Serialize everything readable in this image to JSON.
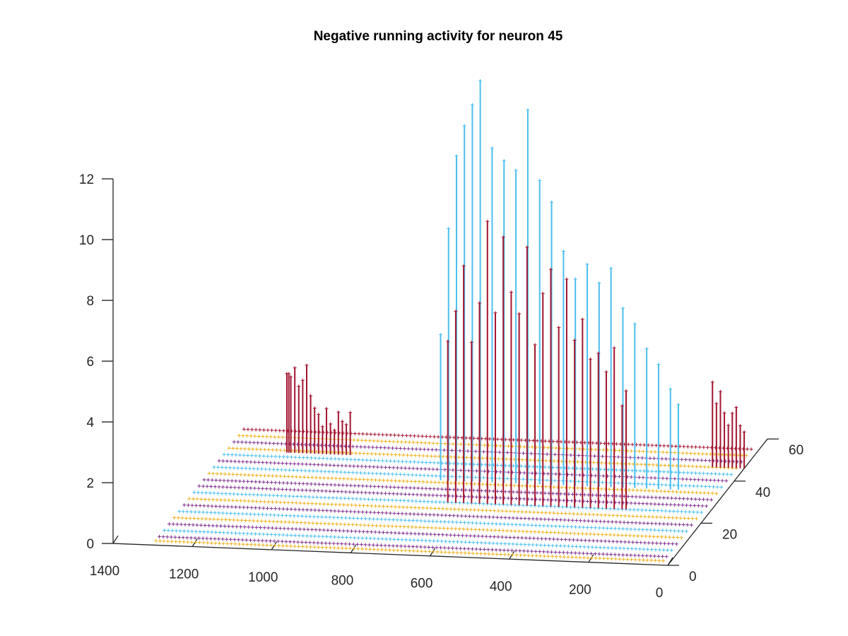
{
  "chart_data": {
    "type": "stem3",
    "title": "Negative running activity for neuron 45",
    "xlabel": "",
    "ylabel": "",
    "zlabel": "",
    "xlim": [
      0,
      1400
    ],
    "ylim": [
      0,
      60
    ],
    "zlim": [
      0,
      12
    ],
    "x_ticks": [
      0,
      200,
      400,
      600,
      800,
      1000,
      1200,
      1400
    ],
    "y_ticks": [
      0,
      20,
      40,
      60
    ],
    "z_ticks": [
      0,
      2,
      4,
      6,
      8,
      10,
      12
    ],
    "grid": false,
    "baseline_rows": [
      {
        "y": 2,
        "x_min": 20,
        "x_max": 1300,
        "color": "#EDB120"
      },
      {
        "y": 4,
        "x_min": 20,
        "x_max": 1300,
        "color": "#7E2F8E"
      },
      {
        "y": 7,
        "x_min": 20,
        "x_max": 1300,
        "color": "#4DBEEE"
      },
      {
        "y": 10,
        "x_min": 20,
        "x_max": 1300,
        "color": "#7E2F8E"
      },
      {
        "y": 13,
        "x_min": 20,
        "x_max": 1300,
        "color": "#EDB120"
      },
      {
        "y": 16,
        "x_min": 20,
        "x_max": 1300,
        "color": "#4DBEEE"
      },
      {
        "y": 19,
        "x_min": 20,
        "x_max": 1300,
        "color": "#7E2F8E"
      },
      {
        "y": 22,
        "x_min": 20,
        "x_max": 1300,
        "color": "#EDB120"
      },
      {
        "y": 25,
        "x_min": 20,
        "x_max": 1300,
        "color": "#4DBEEE"
      },
      {
        "y": 28,
        "x_min": 20,
        "x_max": 1300,
        "color": "#7E2F8E"
      },
      {
        "y": 31,
        "x_min": 20,
        "x_max": 1300,
        "color": "#7E2F8E"
      },
      {
        "y": 34,
        "x_min": 20,
        "x_max": 1300,
        "color": "#EDB120"
      },
      {
        "y": 37,
        "x_min": 20,
        "x_max": 1300,
        "color": "#4DBEEE"
      },
      {
        "y": 40,
        "x_min": 20,
        "x_max": 1300,
        "color": "#7E2F8E"
      },
      {
        "y": 43,
        "x_min": 20,
        "x_max": 1300,
        "color": "#4DBEEE"
      },
      {
        "y": 46,
        "x_min": 20,
        "x_max": 1300,
        "color": "#EDB120"
      },
      {
        "y": 49,
        "x_min": 20,
        "x_max": 1300,
        "color": "#7E2F8E"
      },
      {
        "y": 52,
        "x_min": 20,
        "x_max": 1300,
        "color": "#EDB120"
      },
      {
        "y": 55,
        "x_min": 20,
        "x_max": 1300,
        "color": "#A2142F"
      }
    ],
    "series": [
      {
        "color": "#4DBEEE",
        "stems": [
          {
            "x": 720,
            "y": 35,
            "z": 4.8
          },
          {
            "x": 700,
            "y": 35,
            "z": 8.3
          },
          {
            "x": 680,
            "y": 35,
            "z": 10.7
          },
          {
            "x": 660,
            "y": 35,
            "z": 11.7
          },
          {
            "x": 640,
            "y": 35,
            "z": 12.4
          },
          {
            "x": 620,
            "y": 35,
            "z": 13.2
          },
          {
            "x": 590,
            "y": 35,
            "z": 11.0
          },
          {
            "x": 560,
            "y": 35,
            "z": 10.6
          },
          {
            "x": 530,
            "y": 35,
            "z": 10.3
          },
          {
            "x": 500,
            "y": 35,
            "z": 12.3
          },
          {
            "x": 470,
            "y": 35,
            "z": 10.0
          },
          {
            "x": 440,
            "y": 35,
            "z": 9.3
          },
          {
            "x": 410,
            "y": 35,
            "z": 7.7
          },
          {
            "x": 380,
            "y": 35,
            "z": 6.8
          },
          {
            "x": 350,
            "y": 35,
            "z": 7.3
          },
          {
            "x": 320,
            "y": 35,
            "z": 6.7
          },
          {
            "x": 290,
            "y": 35,
            "z": 7.2
          },
          {
            "x": 260,
            "y": 35,
            "z": 5.9
          },
          {
            "x": 230,
            "y": 35,
            "z": 5.4
          },
          {
            "x": 200,
            "y": 35,
            "z": 4.6
          },
          {
            "x": 170,
            "y": 35,
            "z": 4.1
          },
          {
            "x": 140,
            "y": 35,
            "z": 3.3
          },
          {
            "x": 120,
            "y": 35,
            "z": 2.8
          }
        ]
      },
      {
        "color": "#A2142F",
        "stems": [
          {
            "x": 660,
            "y": 25,
            "z": 5.3
          },
          {
            "x": 640,
            "y": 25,
            "z": 6.3
          },
          {
            "x": 620,
            "y": 25,
            "z": 7.8
          },
          {
            "x": 600,
            "y": 25,
            "z": 5.3
          },
          {
            "x": 580,
            "y": 25,
            "z": 6.6
          },
          {
            "x": 560,
            "y": 25,
            "z": 9.3
          },
          {
            "x": 540,
            "y": 25,
            "z": 6.3
          },
          {
            "x": 520,
            "y": 25,
            "z": 8.8
          },
          {
            "x": 500,
            "y": 25,
            "z": 7.0
          },
          {
            "x": 480,
            "y": 25,
            "z": 6.3
          },
          {
            "x": 460,
            "y": 25,
            "z": 8.5
          },
          {
            "x": 440,
            "y": 25,
            "z": 5.3
          },
          {
            "x": 420,
            "y": 25,
            "z": 7.0
          },
          {
            "x": 400,
            "y": 25,
            "z": 7.8
          },
          {
            "x": 380,
            "y": 25,
            "z": 5.9
          },
          {
            "x": 360,
            "y": 25,
            "z": 7.5
          },
          {
            "x": 340,
            "y": 25,
            "z": 5.5
          },
          {
            "x": 320,
            "y": 25,
            "z": 6.2
          },
          {
            "x": 300,
            "y": 25,
            "z": 4.9
          },
          {
            "x": 280,
            "y": 25,
            "z": 5.1
          },
          {
            "x": 260,
            "y": 25,
            "z": 4.5
          },
          {
            "x": 240,
            "y": 25,
            "z": 5.3
          },
          {
            "x": 220,
            "y": 25,
            "z": 3.4
          },
          {
            "x": 210,
            "y": 25,
            "z": 3.9
          }
        ]
      },
      {
        "color": "#A2142F",
        "stems": [
          {
            "x": 1150,
            "y": 45,
            "z": 2.6
          },
          {
            "x": 1145,
            "y": 45,
            "z": 2.6
          },
          {
            "x": 1140,
            "y": 45,
            "z": 2.5
          },
          {
            "x": 1130,
            "y": 45,
            "z": 2.8
          },
          {
            "x": 1120,
            "y": 45,
            "z": 2.2
          },
          {
            "x": 1110,
            "y": 45,
            "z": 2.4
          },
          {
            "x": 1100,
            "y": 45,
            "z": 2.9
          },
          {
            "x": 1090,
            "y": 45,
            "z": 1.9
          },
          {
            "x": 1080,
            "y": 45,
            "z": 1.5
          },
          {
            "x": 1070,
            "y": 45,
            "z": 1.3
          },
          {
            "x": 1060,
            "y": 45,
            "z": 0.9
          },
          {
            "x": 1050,
            "y": 45,
            "z": 1.5
          },
          {
            "x": 1040,
            "y": 45,
            "z": 1.0
          },
          {
            "x": 1030,
            "y": 45,
            "z": 0.8
          },
          {
            "x": 1020,
            "y": 45,
            "z": 1.4
          },
          {
            "x": 1010,
            "y": 45,
            "z": 1.1
          },
          {
            "x": 1000,
            "y": 45,
            "z": 1.0
          },
          {
            "x": 990,
            "y": 45,
            "z": 1.4
          }
        ]
      },
      {
        "color": "#A2142F",
        "stems": [
          {
            "x": 80,
            "y": 46,
            "z": 2.8
          },
          {
            "x": 70,
            "y": 46,
            "z": 2.1
          },
          {
            "x": 60,
            "y": 46,
            "z": 2.5
          },
          {
            "x": 50,
            "y": 46,
            "z": 1.8
          },
          {
            "x": 40,
            "y": 46,
            "z": 1.4
          },
          {
            "x": 30,
            "y": 46,
            "z": 1.8
          },
          {
            "x": 20,
            "y": 46,
            "z": 2.0
          },
          {
            "x": 10,
            "y": 46,
            "z": 1.4
          },
          {
            "x": 0,
            "y": 46,
            "z": 1.2
          }
        ]
      }
    ]
  }
}
